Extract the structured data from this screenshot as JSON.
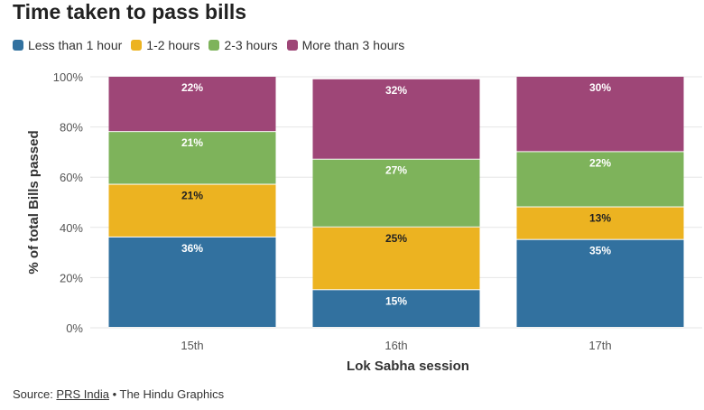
{
  "title": "Time taken to pass bills",
  "colors": {
    "less_than_1_hour": "#32719f",
    "h1_2": "#ecb321",
    "h2_3": "#7eb35b",
    "more_than_3": "#9e4677",
    "grid": "#e6e6e6",
    "axis_text": "#555555"
  },
  "legend": [
    {
      "label": "Less than 1 hour",
      "color": "#32719f"
    },
    {
      "label": "1-2 hours",
      "color": "#ecb321"
    },
    {
      "label": "2-3 hours",
      "color": "#7eb35b"
    },
    {
      "label": "More than 3 hours",
      "color": "#9e4677"
    }
  ],
  "source": {
    "prefix": "Source: ",
    "link_text": "PRS India",
    "suffix": " • The Hindu Graphics"
  },
  "chart_data": {
    "type": "bar",
    "stacked": true,
    "categories": [
      "15th",
      "16th",
      "17th"
    ],
    "series": [
      {
        "name": "Less than 1 hour",
        "color": "#32719f",
        "label_color": "#ffffff",
        "values": [
          36,
          15,
          35
        ],
        "labels": [
          "36%",
          "15%",
          "35%"
        ]
      },
      {
        "name": "1-2 hours",
        "color": "#ecb321",
        "label_color": "#222222",
        "values": [
          21,
          25,
          13
        ],
        "labels": [
          "21%",
          "25%",
          "13%"
        ]
      },
      {
        "name": "2-3 hours",
        "color": "#7eb35b",
        "label_color": "#ffffff",
        "values": [
          21,
          27,
          22
        ],
        "labels": [
          "21%",
          "27%",
          "22%"
        ]
      },
      {
        "name": "More than 3 hours",
        "color": "#9e4677",
        "label_color": "#ffffff",
        "values": [
          22,
          32,
          30
        ],
        "labels": [
          "22%",
          "32%",
          "30%"
        ]
      }
    ],
    "xlabel": "Lok Sabha session",
    "ylabel": "% of total Bills passed",
    "ylim": [
      0,
      100
    ],
    "yticks": [
      0,
      20,
      40,
      60,
      80,
      100
    ],
    "ytick_labels": [
      "0%",
      "20%",
      "40%",
      "60%",
      "80%",
      "100%"
    ],
    "grid": true,
    "legend_position": "top-left"
  }
}
